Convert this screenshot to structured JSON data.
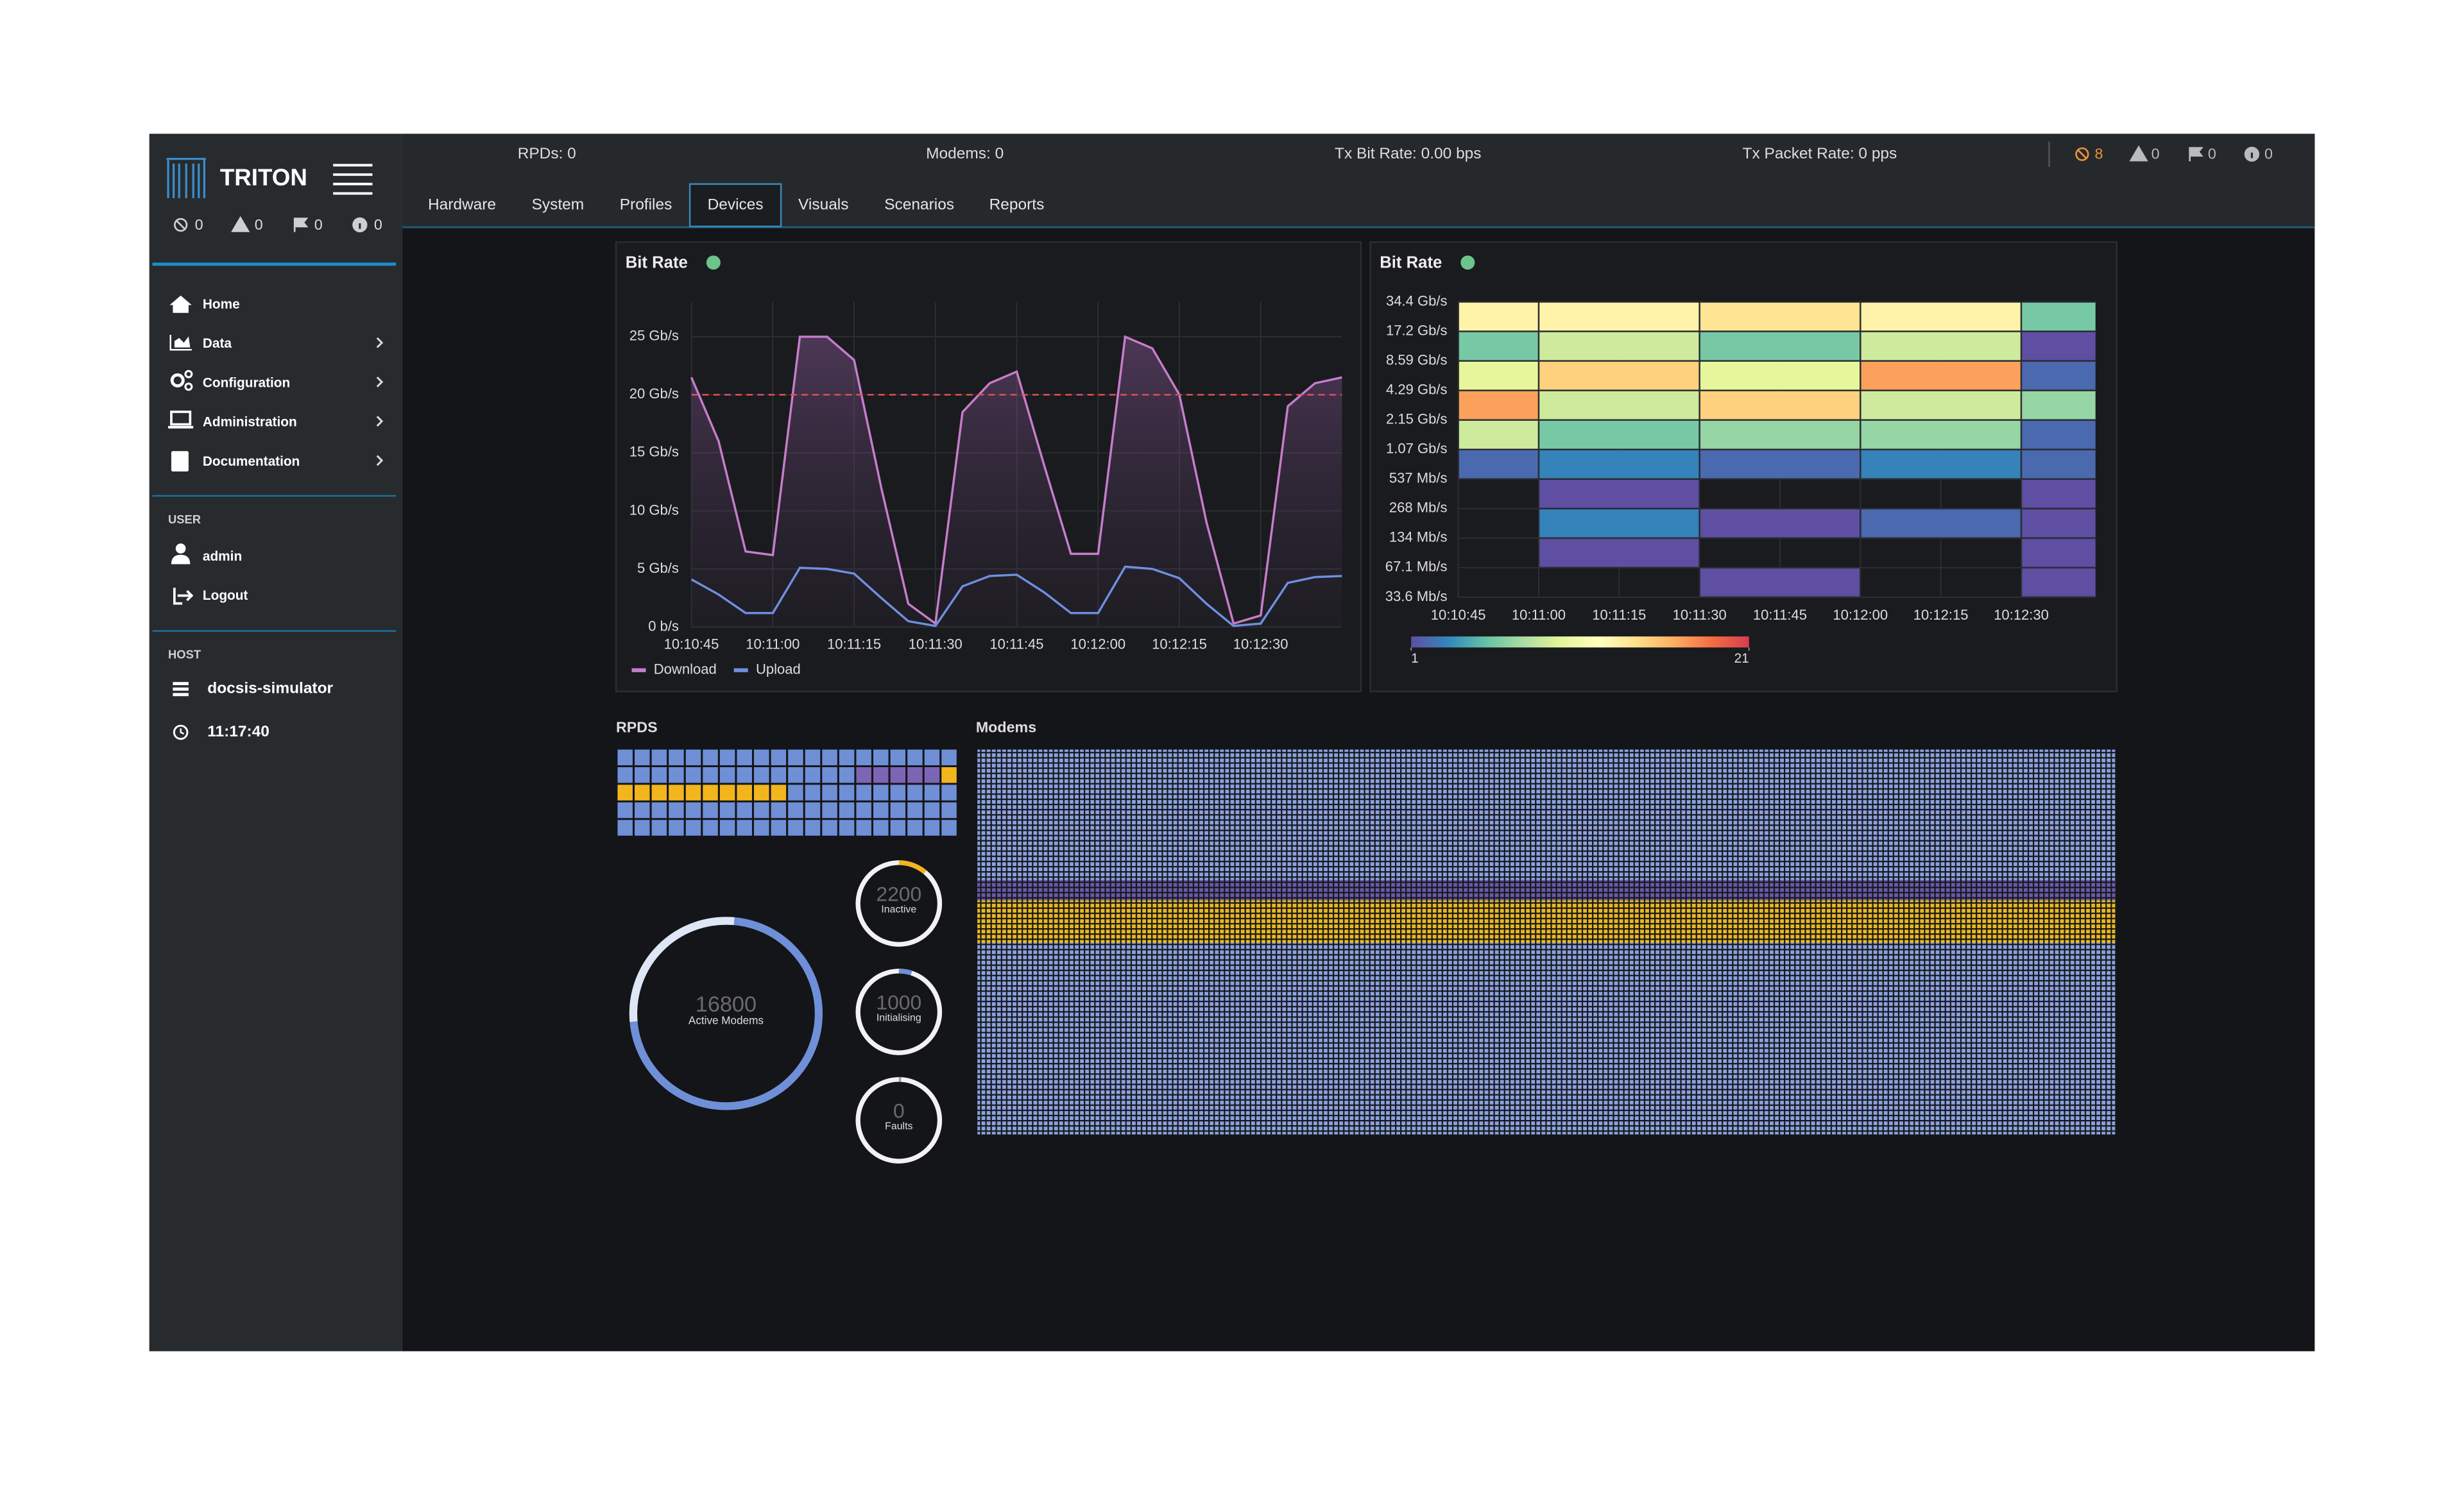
{
  "sidebar": {
    "brand": "TRITON",
    "status_counts": [
      "0",
      "0",
      "0",
      "0"
    ],
    "menu": [
      "Home",
      "Data",
      "Configuration",
      "Administration",
      "Documentation"
    ],
    "user_heading": "USER",
    "user_items": [
      "admin",
      "Logout"
    ],
    "host_heading": "HOST",
    "host_items": [
      "docsis-simulator",
      "11:17:40"
    ]
  },
  "header": {
    "stats": [
      "RPDs: 0",
      "Modems: 0",
      "Tx Bit Rate: 0.00 bps",
      "Tx Packet Rate: 0 pps"
    ],
    "status_counts": [
      "8",
      "0",
      "0",
      "0"
    ]
  },
  "tabs": {
    "items": [
      "Hardware",
      "System",
      "Profiles",
      "Devices",
      "Visuals",
      "Scenarios",
      "Reports"
    ],
    "active": "Devices"
  },
  "chart_data": [
    {
      "type": "line",
      "title": "Bit Rate",
      "x": [
        "10:10:45",
        "10:10:50",
        "10:10:55",
        "10:11:00",
        "10:11:05",
        "10:11:10",
        "10:11:15",
        "10:11:20",
        "10:11:25",
        "10:11:30",
        "10:11:35",
        "10:11:40",
        "10:11:45",
        "10:11:50",
        "10:11:55",
        "10:12:00",
        "10:12:05",
        "10:12:10",
        "10:12:15",
        "10:12:20",
        "10:12:25",
        "10:12:30",
        "10:12:35",
        "10:12:40",
        "10:12:45"
      ],
      "series": [
        {
          "name": "Download",
          "color": "#c77dcc",
          "values": [
            21.5,
            16,
            6.5,
            6.2,
            25,
            25,
            23,
            12,
            2,
            0.3,
            18.5,
            21,
            22,
            14,
            6.3,
            6.3,
            25,
            24,
            20,
            9,
            0.3,
            1,
            19,
            21,
            21.5
          ]
        },
        {
          "name": "Upload",
          "color": "#6f8fe0",
          "values": [
            4.1,
            2.8,
            1.2,
            1.2,
            5.1,
            5.0,
            4.6,
            2.5,
            0.5,
            0.1,
            3.5,
            4.4,
            4.5,
            3.0,
            1.2,
            1.2,
            5.2,
            5.0,
            4.2,
            2.0,
            0.1,
            0.3,
            3.8,
            4.3,
            4.4
          ]
        }
      ],
      "reference_line": {
        "value": 20,
        "color": "#e0505a"
      },
      "xlim": [
        "10:10:45",
        "10:12:45"
      ],
      "xticks": [
        "10:10:45",
        "10:11:00",
        "10:11:15",
        "10:11:30",
        "10:11:45",
        "10:12:00",
        "10:12:15",
        "10:12:30"
      ],
      "ylim": [
        0,
        28
      ],
      "yticks": [
        {
          "value": 0,
          "label": "0 b/s"
        },
        {
          "value": 5,
          "label": "5 Gb/s"
        },
        {
          "value": 10,
          "label": "10 Gb/s"
        },
        {
          "value": 15,
          "label": "15 Gb/s"
        },
        {
          "value": 20,
          "label": "20 Gb/s"
        },
        {
          "value": 25,
          "label": "25 Gb/s"
        }
      ],
      "grid": true,
      "legend": "bottom-left"
    },
    {
      "type": "heatmap",
      "title": "Bit Rate",
      "y_edges": [
        "34.4 Gb/s",
        "17.2 Gb/s",
        "8.59 Gb/s",
        "4.29 Gb/s",
        "2.15 Gb/s",
        "1.07 Gb/s",
        "537 Mb/s",
        "268 Mb/s",
        "134 Mb/s",
        "67.1 Mb/s",
        "33.6 Mb/s"
      ],
      "x_edges": [
        "10:10:45",
        "10:11:00",
        "10:11:30",
        "10:12:00",
        "10:12:30",
        "10:12:44"
      ],
      "xlim": [
        "10:10:45",
        "10:12:44"
      ],
      "xticks": [
        "10:10:45",
        "10:11:00",
        "10:11:15",
        "10:11:30",
        "10:11:45",
        "10:12:00",
        "10:12:15",
        "10:12:30"
      ],
      "values": [
        [
          13,
          13,
          14,
          13,
          6
        ],
        [
          6,
          9,
          6,
          9,
          1
        ],
        [
          10,
          15,
          10,
          17,
          2
        ],
        [
          17,
          9,
          15,
          9,
          7
        ],
        [
          9,
          6,
          7,
          7,
          2
        ],
        [
          2,
          3,
          2,
          3,
          2
        ],
        [
          null,
          1,
          null,
          null,
          1
        ],
        [
          null,
          3,
          1,
          2,
          1
        ],
        [
          null,
          1,
          null,
          null,
          1
        ],
        [
          null,
          null,
          1,
          null,
          1
        ]
      ],
      "zlim": [
        1,
        21
      ],
      "zticks": [
        1,
        21
      ],
      "colorscale": [
        "#5e4fa2",
        "#3288bd",
        "#66c2a5",
        "#abdda4",
        "#e6f598",
        "#ffffbf",
        "#fee08b",
        "#fdae61",
        "#f46d43",
        "#d53e4f"
      ]
    }
  ],
  "rpds": {
    "title": "RPDS"
  },
  "modems": {
    "title": "Modems"
  },
  "donuts": [
    {
      "value": "16800",
      "label": "Active Modems"
    },
    {
      "value": "2200",
      "label": "Inactive"
    },
    {
      "value": "1000",
      "label": "Initialising"
    },
    {
      "value": "0",
      "label": "Faults"
    }
  ]
}
